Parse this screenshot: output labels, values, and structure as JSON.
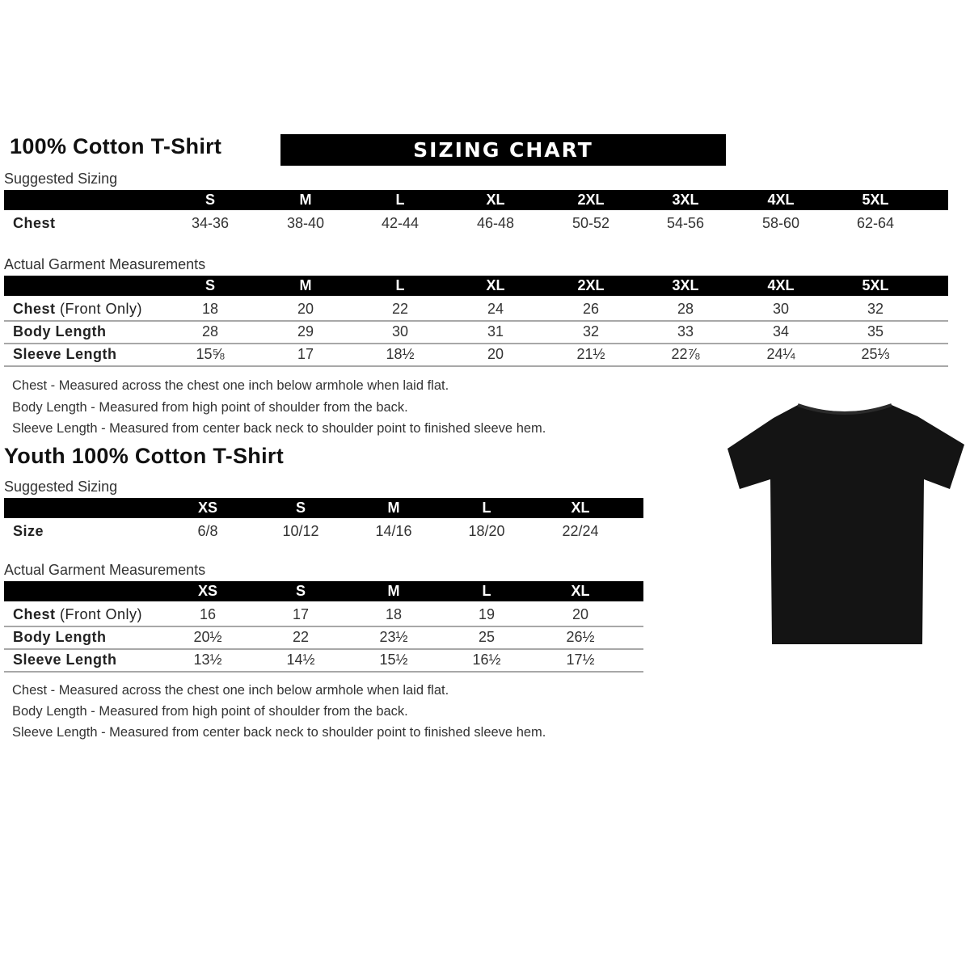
{
  "adult": {
    "title": "100% Cotton T-Shirt",
    "banner": "SIZING CHART",
    "suggested": {
      "label": "Suggested Sizing",
      "sizes": [
        "S",
        "M",
        "L",
        "XL",
        "2XL",
        "3XL",
        "4XL",
        "5XL"
      ],
      "rows": [
        {
          "label": "Chest",
          "values": [
            "34-36",
            "38-40",
            "42-44",
            "46-48",
            "50-52",
            "54-56",
            "58-60",
            "62-64"
          ]
        }
      ]
    },
    "actual": {
      "label": "Actual Garment Measurements",
      "sizes": [
        "S",
        "M",
        "L",
        "XL",
        "2XL",
        "3XL",
        "4XL",
        "5XL"
      ],
      "rows": [
        {
          "label": "Chest",
          "label_note": "(Front Only)",
          "values": [
            "18",
            "20",
            "22",
            "24",
            "26",
            "28",
            "30",
            "32"
          ]
        },
        {
          "label": "Body Length",
          "values": [
            "28",
            "29",
            "30",
            "31",
            "32",
            "33",
            "34",
            "35"
          ]
        },
        {
          "label": "Sleeve Length",
          "values": [
            "15⅝",
            "17",
            "18½",
            "20",
            "21½",
            "22⅞",
            "24¼",
            "25⅓"
          ]
        }
      ]
    },
    "notes": [
      "Chest - Measured across the chest one inch below armhole when laid flat.",
      "Body Length - Measured from high point of shoulder from the back.",
      "Sleeve Length - Measured from center back neck to shoulder point to finished sleeve hem."
    ]
  },
  "youth": {
    "title": "Youth 100% Cotton T-Shirt",
    "suggested": {
      "label": "Suggested Sizing",
      "sizes": [
        "XS",
        "S",
        "M",
        "L",
        "XL"
      ],
      "rows": [
        {
          "label": "Size",
          "values": [
            "6/8",
            "10/12",
            "14/16",
            "18/20",
            "22/24"
          ]
        }
      ]
    },
    "actual": {
      "label": "Actual Garment Measurements",
      "sizes": [
        "XS",
        "S",
        "M",
        "L",
        "XL"
      ],
      "rows": [
        {
          "label": "Chest",
          "label_note": "(Front Only)",
          "values": [
            "16",
            "17",
            "18",
            "19",
            "20"
          ]
        },
        {
          "label": "Body Length",
          "values": [
            "20½",
            "22",
            "23½",
            "25",
            "26½"
          ]
        },
        {
          "label": "Sleeve Length",
          "values": [
            "13½",
            "14½",
            "15½",
            "16½",
            "17½"
          ]
        }
      ]
    },
    "notes": [
      "Chest - Measured across the chest one inch below armhole when laid flat.",
      "Body Length - Measured from high point of shoulder from the back.",
      "Sleeve Length - Measured from center back neck to shoulder point to finished sleeve hem."
    ]
  },
  "image": {
    "icon": "t-shirt-icon",
    "color": "#141414"
  }
}
